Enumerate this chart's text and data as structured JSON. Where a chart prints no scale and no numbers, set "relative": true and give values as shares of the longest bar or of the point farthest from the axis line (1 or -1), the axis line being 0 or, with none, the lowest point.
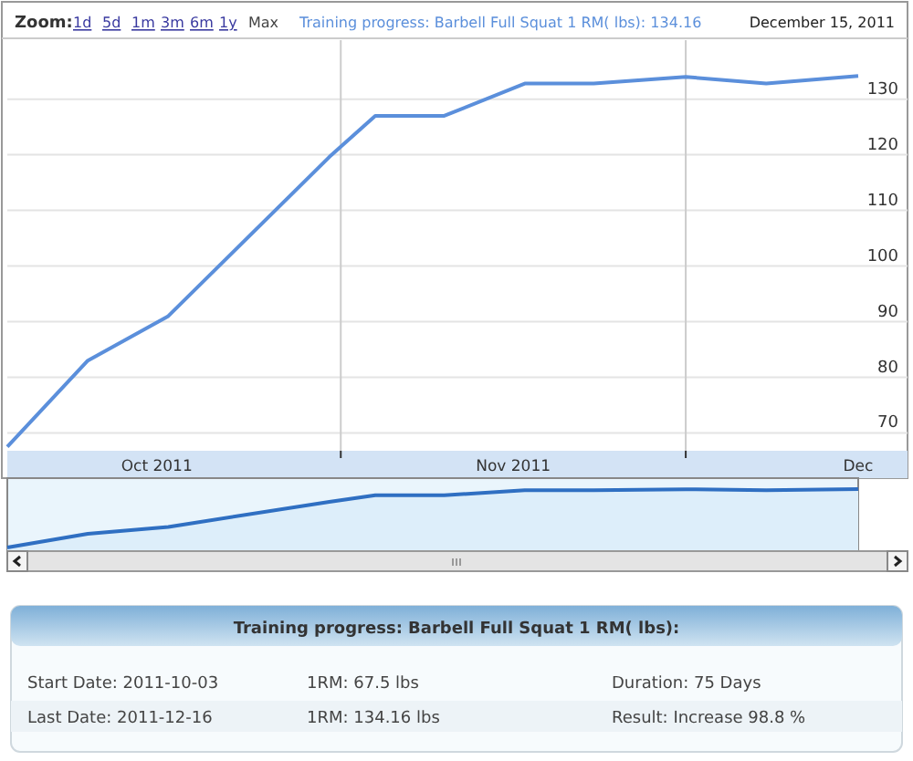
{
  "chart_data": [
    {
      "type": "line",
      "annotations": [
        "Zoom:",
        "1d",
        "5d",
        "1m",
        "3m",
        "6m",
        "1y",
        "Max",
        "Training progress: Barbell Full Squat 1 RM( lbs): 134.16",
        "December 15, 2011"
      ],
      "x": [
        "2011-10-03",
        "2011-10-10",
        "2011-10-17",
        "2011-10-31",
        "2011-11-04",
        "2011-11-10",
        "2011-11-17",
        "2011-11-23",
        "2011-12-01",
        "2011-12-08",
        "2011-12-16"
      ],
      "series": [
        {
          "color": "#5b8fdb",
          "values": [
            67.5,
            83,
            91,
            119.6,
            127,
            127,
            132.8,
            132.8,
            134,
            132.8,
            134.16
          ]
        }
      ],
      "xlim": [
        "2011-10-03",
        "2011-12-16"
      ],
      "xticks": [
        {
          "value": "2011-10-16",
          "label": "Oct 2011"
        },
        {
          "value": "2011-11-01",
          "label": null
        },
        {
          "value": "2011-11-16",
          "label": "Nov 2011"
        },
        {
          "value": "2011-12-01",
          "label": null
        },
        {
          "value": "2011-12-16",
          "label": "Dec"
        }
      ],
      "ylim": [
        66.8,
        140.6
      ],
      "yticks": [
        70,
        80,
        90,
        100,
        110,
        120,
        130
      ],
      "grid": true,
      "marker": "none",
      "line_style": "solid"
    },
    {
      "type": "area",
      "relative": true,
      "xlim": [
        "2011-10-03",
        "2011-12-16"
      ],
      "x": [
        "2011-10-03",
        "2011-10-10",
        "2011-10-17",
        "2011-10-31",
        "2011-11-04",
        "2011-11-10",
        "2011-11-17",
        "2011-11-23",
        "2011-12-01",
        "2011-12-08",
        "2011-12-16"
      ],
      "series": [
        {
          "color": "#2f6fc2",
          "values": [
            0,
            0.233,
            0.353,
            0.782,
            0.893,
            0.893,
            0.98,
            0.98,
            0.998,
            0.98,
            1
          ]
        }
      ]
    },
    {
      "type": "other",
      "title": "Training progress: Barbell Full Squat 1 RM( lbs):",
      "annotations": [
        "Start Date: 2011-10-03",
        "1RM: 67.5 lbs",
        "Duration: 75 Days",
        "Last Date: 2011-12-16",
        "1RM: 134.16 lbs",
        "Result: Increase 98.8 %"
      ]
    }
  ]
}
